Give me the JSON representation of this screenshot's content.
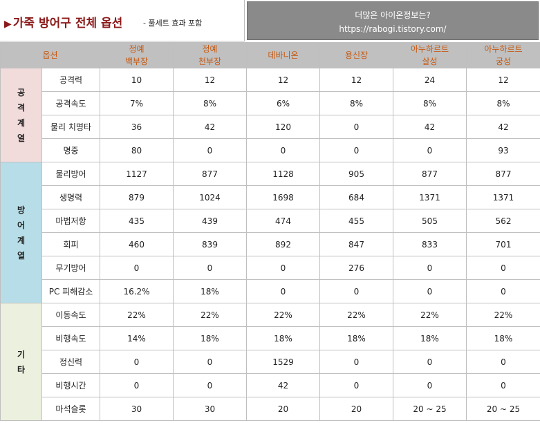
{
  "header": {
    "title_marker": "▶",
    "title": "가죽 방어구 전체 옵션",
    "subtitle": "- 풀세트 효과 포함",
    "info_line1": "더많은 아이온정보는?",
    "info_line2": "https://rabogi.tistory.com/"
  },
  "table": {
    "option_header": "옵션",
    "columns": [
      {
        "line1": "정예",
        "line2": "백부장"
      },
      {
        "line1": "정예",
        "line2": "천부장"
      },
      {
        "line1": "데바니온",
        "line2": ""
      },
      {
        "line1": "용신장",
        "line2": ""
      },
      {
        "line1": "아누하르트",
        "line2": "살성"
      },
      {
        "line1": "아누하르트",
        "line2": "궁성"
      }
    ],
    "groups": [
      {
        "name": [
          "공",
          "격",
          "계",
          "열"
        ],
        "color": "#f2dcdb",
        "rows": [
          {
            "option": "공격력",
            "values": [
              "10",
              "12",
              "12",
              "12",
              "24",
              "12"
            ]
          },
          {
            "option": "공격속도",
            "values": [
              "7%",
              "8%",
              "6%",
              "8%",
              "8%",
              "8%"
            ]
          },
          {
            "option": "물리 치명타",
            "values": [
              "36",
              "42",
              "120",
              "0",
              "42",
              "42"
            ]
          },
          {
            "option": "명중",
            "values": [
              "80",
              "0",
              "0",
              "0",
              "0",
              "93"
            ]
          }
        ]
      },
      {
        "name": [
          "방",
          "어",
          "계",
          "열"
        ],
        "color": "#b7dee8",
        "rows": [
          {
            "option": "물리방어",
            "values": [
              "1127",
              "877",
              "1128",
              "905",
              "877",
              "877"
            ]
          },
          {
            "option": "생명력",
            "values": [
              "879",
              "1024",
              "1698",
              "684",
              "1371",
              "1371"
            ]
          },
          {
            "option": "마법저항",
            "values": [
              "435",
              "439",
              "474",
              "455",
              "505",
              "562"
            ]
          },
          {
            "option": "회피",
            "values": [
              "460",
              "839",
              "892",
              "847",
              "833",
              "701"
            ]
          },
          {
            "option": "무기방어",
            "values": [
              "0",
              "0",
              "0",
              "276",
              "0",
              "0"
            ]
          },
          {
            "option": "PC 피해감소",
            "values": [
              "16.2%",
              "18%",
              "0",
              "0",
              "0",
              "0"
            ]
          }
        ]
      },
      {
        "name": [
          "기",
          "타"
        ],
        "color": "#ebf1de",
        "rows": [
          {
            "option": "이동속도",
            "values": [
              "22%",
              "22%",
              "22%",
              "22%",
              "22%",
              "22%"
            ]
          },
          {
            "option": "비행속도",
            "values": [
              "14%",
              "18%",
              "18%",
              "18%",
              "18%",
              "18%"
            ]
          },
          {
            "option": "정신력",
            "values": [
              "0",
              "0",
              "1529",
              "0",
              "0",
              "0"
            ]
          },
          {
            "option": "비행시간",
            "values": [
              "0",
              "0",
              "42",
              "0",
              "0",
              "0"
            ]
          },
          {
            "option": "마석슬롯",
            "values": [
              "30",
              "30",
              "20",
              "20",
              "20 ~ 25",
              "20 ~ 25"
            ]
          }
        ]
      }
    ]
  }
}
